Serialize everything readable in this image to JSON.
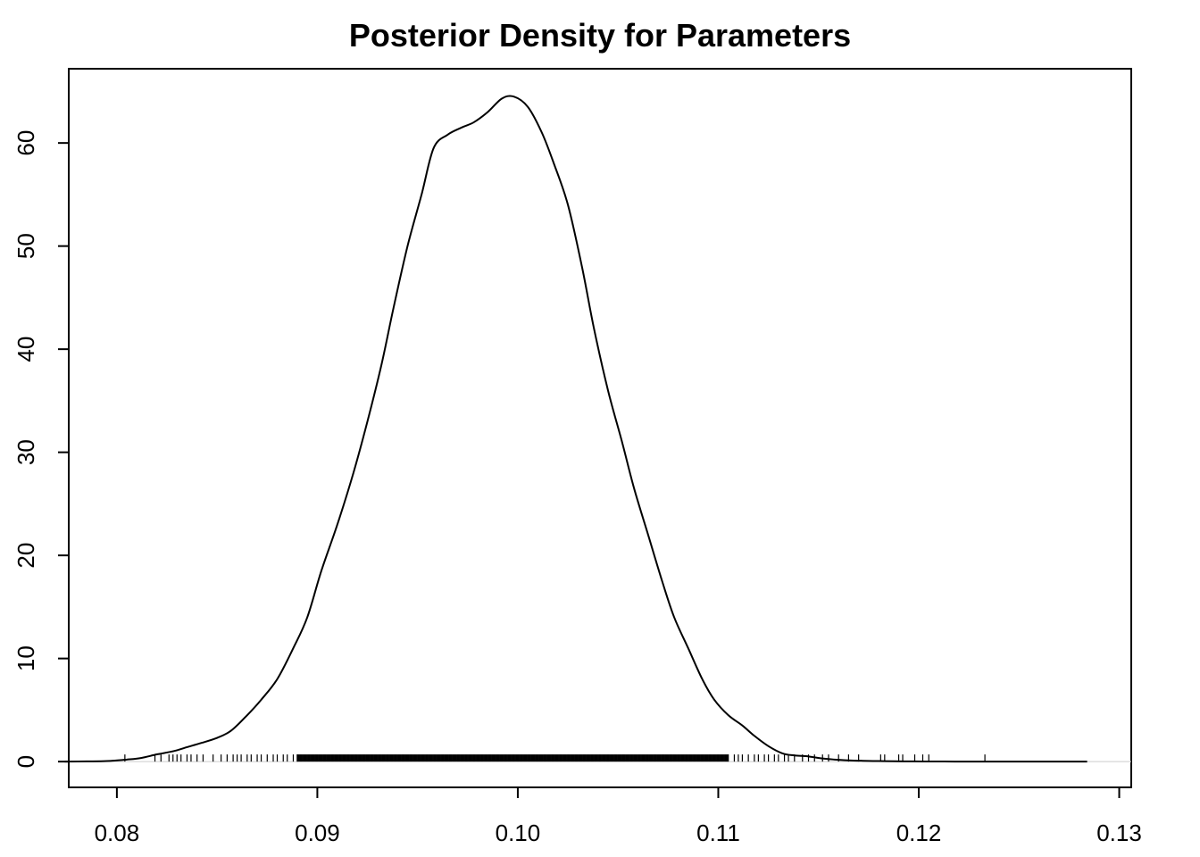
{
  "chart_data": {
    "type": "line",
    "title": "Posterior Density for Parameters",
    "xlabel": "",
    "ylabel": "",
    "xlim": [
      0.0776,
      0.1306
    ],
    "ylim": [
      -2.5,
      67.2
    ],
    "x_ticks": [
      "0.08",
      "0.09",
      "0.10",
      "0.11",
      "0.12",
      "0.13"
    ],
    "y_ticks": [
      "0",
      "10",
      "20",
      "30",
      "40",
      "50",
      "60"
    ],
    "grid": false,
    "legend": "none",
    "series": [
      {
        "x": [
          0.0774,
          0.0785,
          0.0795,
          0.0805,
          0.0812,
          0.082,
          0.0828,
          0.0835,
          0.0842,
          0.085,
          0.0857,
          0.0865,
          0.0872,
          0.088,
          0.0888,
          0.0895,
          0.0902,
          0.091,
          0.0918,
          0.0925,
          0.0932,
          0.0938,
          0.0945,
          0.0952,
          0.0958,
          0.0965,
          0.0972,
          0.0978,
          0.0985,
          0.0992,
          0.0998,
          0.1005,
          0.1012,
          0.1018,
          0.1025,
          0.1032,
          0.1038,
          0.1045,
          0.1052,
          0.1058,
          0.1065,
          0.1072,
          0.1078,
          0.1085,
          0.1092,
          0.1098,
          0.1105,
          0.1112,
          0.1118,
          0.1125,
          0.1132,
          0.1138,
          0.1145,
          0.1152,
          0.1158,
          0.1165,
          0.1172,
          0.118,
          0.1188,
          0.1195,
          0.1202,
          0.121,
          0.1218,
          0.1225,
          0.1235,
          0.125,
          0.1265,
          0.1284
        ],
        "y": [
          0.0,
          0.02,
          0.05,
          0.2,
          0.35,
          0.7,
          1.0,
          1.4,
          1.8,
          2.3,
          3.0,
          4.5,
          6.0,
          8.0,
          11.0,
          14.0,
          18.5,
          23.0,
          28.0,
          33.0,
          38.5,
          44.0,
          50.0,
          55.0,
          59.5,
          60.8,
          61.5,
          62.0,
          63.0,
          64.3,
          64.5,
          63.5,
          61.0,
          58.0,
          54.0,
          48.0,
          42.0,
          36.0,
          31.0,
          26.5,
          22.0,
          17.5,
          14.0,
          11.0,
          8.0,
          6.0,
          4.5,
          3.5,
          2.5,
          1.5,
          0.8,
          0.6,
          0.5,
          0.3,
          0.2,
          0.12,
          0.08,
          0.05,
          0.03,
          0.02,
          0.01,
          0.01,
          0.0,
          0.0,
          0.0,
          0.0,
          0.0,
          0.0
        ]
      }
    ],
    "rug": [
      0.0804,
      0.0819,
      0.0822,
      0.0826,
      0.0828,
      0.083,
      0.0832,
      0.0835,
      0.0837,
      0.084,
      0.0843,
      0.0848,
      0.0852,
      0.0855,
      0.0858,
      0.086,
      0.0862,
      0.0865,
      0.0867,
      0.087,
      0.0872,
      0.0875,
      0.0878,
      0.088,
      0.0883,
      0.0885,
      0.0888,
      0.089,
      0.1105,
      0.1108,
      0.111,
      0.1112,
      0.1115,
      0.1118,
      0.112,
      0.1123,
      0.1125,
      0.1128,
      0.113,
      0.1133,
      0.1135,
      0.1138,
      0.1142,
      0.1145,
      0.1148,
      0.1152,
      0.1155,
      0.116,
      0.1165,
      0.117,
      0.1181,
      0.1183,
      0.119,
      0.1192,
      0.1198,
      0.1202,
      0.1205,
      0.1233
    ],
    "rug_dense_range": [
      0.089,
      0.1105
    ],
    "colors": {
      "line": "#000000",
      "zero_line": "#cccccc",
      "background": "#ffffff"
    }
  }
}
